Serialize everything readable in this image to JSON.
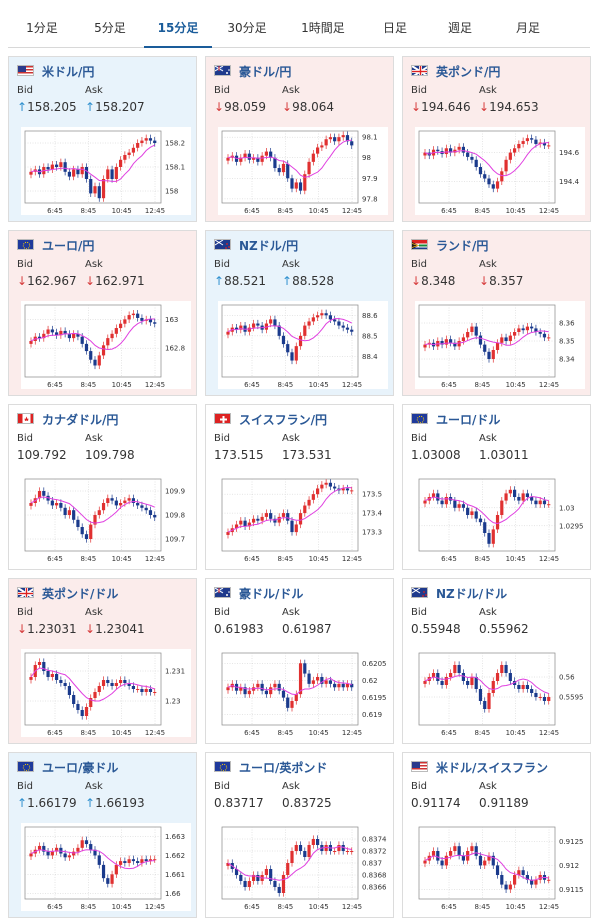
{
  "tabs": [
    {
      "label": "1分足",
      "active": false
    },
    {
      "label": "5分足",
      "active": false
    },
    {
      "label": "15分足",
      "active": true
    },
    {
      "label": "30分足",
      "active": false
    },
    {
      "label": "1時間足",
      "active": false
    },
    {
      "label": "日足",
      "active": false
    },
    {
      "label": "週足",
      "active": false
    },
    {
      "label": "月足",
      "active": false
    }
  ],
  "labels": {
    "bid": "Bid",
    "ask": "Ask"
  },
  "colors": {
    "up_bg": "#e8f3fb",
    "down_bg": "#fbeceb",
    "up_arrow": "#2e8fce",
    "down_arrow": "#d63b3b",
    "bull_candle": "#e03030",
    "bear_candle": "#1a3a8c",
    "ma_line": "#e040e0",
    "ma2_line": "#40b0e0"
  },
  "cards": [
    {
      "pair": "米ドル/円",
      "flags": "us-jp",
      "trend": "up",
      "bid": "158.205",
      "ask": "158.207",
      "bid_arrow": "↑",
      "ask_arrow": "↑",
      "chart_data": {
        "type": "candlestick",
        "x_ticks": [
          "6:45",
          "8:45",
          "10:45",
          "12:45"
        ],
        "y_ticks": [
          "158.2",
          "158.1",
          "158"
        ],
        "ylim": [
          157.95,
          158.25
        ],
        "close": [
          158.08,
          158.09,
          158.07,
          158.1,
          158.09,
          158.11,
          158.1,
          158.12,
          158.08,
          158.06,
          158.09,
          158.07,
          158.1,
          158.05,
          157.99,
          158.02,
          157.97,
          158.05,
          158.09,
          158.05,
          158.1,
          158.13,
          158.15,
          158.16,
          158.18,
          158.2,
          158.21,
          158.22,
          158.21,
          158.2
        ]
      }
    },
    {
      "pair": "豪ドル/円",
      "flags": "au-jp",
      "trend": "down",
      "bid": "98.059",
      "ask": "98.064",
      "bid_arrow": "↓",
      "ask_arrow": "↓",
      "chart_data": {
        "type": "candlestick",
        "x_ticks": [
          "6:45",
          "8:45",
          "10:45",
          "12:45"
        ],
        "y_ticks": [
          "98.1",
          "98",
          "97.9",
          "97.8"
        ],
        "ylim": [
          97.78,
          98.13
        ],
        "close": [
          98.0,
          98.01,
          97.98,
          98.0,
          98.02,
          97.99,
          98.0,
          97.98,
          98.01,
          98.03,
          98.0,
          97.95,
          97.93,
          97.97,
          97.9,
          97.85,
          97.88,
          97.84,
          97.92,
          97.98,
          98.02,
          98.05,
          98.06,
          98.09,
          98.1,
          98.08,
          98.1,
          98.11,
          98.08,
          98.06
        ]
      }
    },
    {
      "pair": "英ポンド/円",
      "flags": "gb-jp",
      "trend": "down",
      "bid": "194.646",
      "ask": "194.653",
      "bid_arrow": "↓",
      "ask_arrow": "↓",
      "chart_data": {
        "type": "candlestick",
        "x_ticks": [
          "6:45",
          "8:45",
          "10:45",
          "12:45"
        ],
        "y_ticks": [
          "194.6",
          "194.4"
        ],
        "ylim": [
          194.25,
          194.75
        ],
        "close": [
          194.6,
          194.58,
          194.62,
          194.61,
          194.59,
          194.63,
          194.6,
          194.62,
          194.64,
          194.6,
          194.57,
          194.55,
          194.5,
          194.45,
          194.42,
          194.38,
          194.35,
          194.4,
          194.47,
          194.55,
          194.6,
          194.63,
          194.66,
          194.68,
          194.7,
          194.69,
          194.66,
          194.67,
          194.65,
          194.65
        ]
      }
    },
    {
      "pair": "ユーロ/円",
      "flags": "eu-jp",
      "trend": "down",
      "bid": "162.967",
      "ask": "162.971",
      "bid_arrow": "↓",
      "ask_arrow": "↓",
      "chart_data": {
        "type": "candlestick",
        "x_ticks": [
          "6:45",
          "8:45",
          "10:45",
          "12:45"
        ],
        "y_ticks": [
          "163",
          "162.8"
        ],
        "ylim": [
          162.6,
          163.1
        ],
        "close": [
          162.85,
          162.88,
          162.87,
          162.9,
          162.93,
          162.91,
          162.89,
          162.92,
          162.9,
          162.87,
          162.9,
          162.88,
          162.83,
          162.78,
          162.72,
          162.68,
          162.75,
          162.82,
          162.87,
          162.9,
          162.94,
          162.97,
          163.0,
          163.03,
          163.04,
          163.01,
          162.99,
          163.0,
          162.98,
          162.97
        ]
      }
    },
    {
      "pair": "NZドル/円",
      "flags": "nz-jp",
      "trend": "up",
      "bid": "88.521",
      "ask": "88.528",
      "bid_arrow": "↑",
      "ask_arrow": "↑",
      "chart_data": {
        "type": "candlestick",
        "x_ticks": [
          "6:45",
          "8:45",
          "10:45",
          "12:45"
        ],
        "y_ticks": [
          "88.6",
          "88.5",
          "88.4"
        ],
        "ylim": [
          88.3,
          88.65
        ],
        "close": [
          88.52,
          88.54,
          88.53,
          88.55,
          88.52,
          88.54,
          88.56,
          88.55,
          88.53,
          88.56,
          88.58,
          88.55,
          88.5,
          88.46,
          88.42,
          88.38,
          88.45,
          88.5,
          88.55,
          88.57,
          88.59,
          88.6,
          88.61,
          88.6,
          88.58,
          88.57,
          88.55,
          88.54,
          88.53,
          88.52
        ]
      }
    },
    {
      "pair": "ランド/円",
      "flags": "za-jp",
      "trend": "down",
      "bid": "8.348",
      "ask": "8.357",
      "bid_arrow": "↓",
      "ask_arrow": "↓",
      "chart_data": {
        "type": "candlestick",
        "x_ticks": [
          "6:45",
          "8:45",
          "10:45",
          "12:45"
        ],
        "y_ticks": [
          "8.36",
          "8.35",
          "8.34"
        ],
        "ylim": [
          8.33,
          8.37
        ],
        "close": [
          8.348,
          8.349,
          8.347,
          8.35,
          8.348,
          8.351,
          8.349,
          8.347,
          8.35,
          8.352,
          8.355,
          8.358,
          8.353,
          8.348,
          8.344,
          8.34,
          8.345,
          8.349,
          8.352,
          8.35,
          8.353,
          8.355,
          8.357,
          8.356,
          8.358,
          8.357,
          8.355,
          8.354,
          8.352,
          8.352
        ]
      }
    },
    {
      "pair": "カナダドル/円",
      "flags": "ca-jp",
      "trend": "neutral",
      "bid": "109.792",
      "ask": "109.798",
      "bid_arrow": "",
      "ask_arrow": "",
      "chart_data": {
        "type": "candlestick",
        "x_ticks": [
          "6:45",
          "8:45",
          "10:45",
          "12:45"
        ],
        "y_ticks": [
          "109.9",
          "109.8",
          "109.7"
        ],
        "ylim": [
          109.65,
          109.95
        ],
        "close": [
          109.85,
          109.87,
          109.9,
          109.88,
          109.86,
          109.84,
          109.85,
          109.83,
          109.8,
          109.82,
          109.78,
          109.75,
          109.72,
          109.7,
          109.76,
          109.8,
          109.82,
          109.85,
          109.87,
          109.86,
          109.84,
          109.85,
          109.86,
          109.87,
          109.85,
          109.84,
          109.83,
          109.82,
          109.8,
          109.79
        ]
      }
    },
    {
      "pair": "スイスフラン/円",
      "flags": "ch-jp",
      "trend": "neutral",
      "bid": "173.515",
      "ask": "173.531",
      "bid_arrow": "",
      "ask_arrow": "",
      "chart_data": {
        "type": "candlestick",
        "x_ticks": [
          "6:45",
          "8:45",
          "10:45",
          "12:45"
        ],
        "y_ticks": [
          "173.5",
          "173.4",
          "173.3"
        ],
        "ylim": [
          173.2,
          173.58
        ],
        "close": [
          173.3,
          173.32,
          173.34,
          173.36,
          173.33,
          173.35,
          173.37,
          173.36,
          173.38,
          173.4,
          173.37,
          173.35,
          173.38,
          173.4,
          173.36,
          173.3,
          173.34,
          173.4,
          173.44,
          173.47,
          173.5,
          173.53,
          173.55,
          173.56,
          173.54,
          173.53,
          173.52,
          173.53,
          173.52,
          173.52
        ]
      }
    },
    {
      "pair": "ユーロ/ドル",
      "flags": "eu-us",
      "trend": "neutral",
      "bid": "1.03008",
      "ask": "1.03011",
      "bid_arrow": "",
      "ask_arrow": "",
      "chart_data": {
        "type": "candlestick",
        "x_ticks": [
          "6:45",
          "8:45",
          "10:45",
          "12:45"
        ],
        "y_ticks": [
          "1.03",
          "1.0295"
        ],
        "ylim": [
          1.0288,
          1.0308
        ],
        "close": [
          1.0302,
          1.0303,
          1.0304,
          1.0302,
          1.0301,
          1.0303,
          1.0302,
          1.03,
          1.0301,
          1.03,
          1.0298,
          1.0299,
          1.0297,
          1.0296,
          1.0293,
          1.029,
          1.0294,
          1.0298,
          1.0302,
          1.0304,
          1.0305,
          1.0303,
          1.0302,
          1.0304,
          1.0303,
          1.0302,
          1.0301,
          1.0302,
          1.0301,
          1.0301
        ]
      }
    },
    {
      "pair": "英ポンド/ドル",
      "flags": "gb-us",
      "trend": "down",
      "bid": "1.23031",
      "ask": "1.23041",
      "bid_arrow": "↓",
      "ask_arrow": "↓",
      "chart_data": {
        "type": "candlestick",
        "x_ticks": [
          "6:45",
          "8:45",
          "10:45",
          "12:45"
        ],
        "y_ticks": [
          "1.231",
          "1.23"
        ],
        "ylim": [
          1.2292,
          1.2316
        ],
        "close": [
          1.2308,
          1.2312,
          1.2313,
          1.231,
          1.2308,
          1.2309,
          1.2307,
          1.2306,
          1.2305,
          1.2302,
          1.2299,
          1.2297,
          1.2295,
          1.2298,
          1.2301,
          1.2303,
          1.2305,
          1.2307,
          1.2306,
          1.2305,
          1.2306,
          1.2307,
          1.2306,
          1.2305,
          1.2304,
          1.2304,
          1.2303,
          1.2304,
          1.2303,
          1.2303
        ]
      }
    },
    {
      "pair": "豪ドル/ドル",
      "flags": "au-us",
      "trend": "neutral",
      "bid": "0.61983",
      "ask": "0.61987",
      "bid_arrow": "",
      "ask_arrow": "",
      "chart_data": {
        "type": "candlestick",
        "x_ticks": [
          "6:45",
          "8:45",
          "10:45",
          "12:45"
        ],
        "y_ticks": [
          "0.6205",
          "0.62",
          "0.6195",
          "0.619"
        ],
        "ylim": [
          0.6187,
          0.6208
        ],
        "close": [
          0.6198,
          0.6199,
          0.6197,
          0.6198,
          0.6196,
          0.6197,
          0.6198,
          0.6199,
          0.6197,
          0.6196,
          0.6198,
          0.6199,
          0.6197,
          0.6195,
          0.6192,
          0.6194,
          0.6196,
          0.6205,
          0.6202,
          0.6199,
          0.62,
          0.6201,
          0.6199,
          0.62,
          0.6199,
          0.6198,
          0.6199,
          0.6198,
          0.6199,
          0.6198
        ]
      }
    },
    {
      "pair": "NZドル/ドル",
      "flags": "nz-us",
      "trend": "neutral",
      "bid": "0.55948",
      "ask": "0.55962",
      "bid_arrow": "",
      "ask_arrow": "",
      "chart_data": {
        "type": "candlestick",
        "x_ticks": [
          "6:45",
          "8:45",
          "10:45",
          "12:45"
        ],
        "y_ticks": [
          "0.56",
          "0.5595"
        ],
        "ylim": [
          0.5588,
          0.5606
        ],
        "close": [
          0.5599,
          0.56,
          0.5601,
          0.5599,
          0.5598,
          0.56,
          0.5601,
          0.5603,
          0.5601,
          0.5599,
          0.5598,
          0.56,
          0.5597,
          0.5594,
          0.5592,
          0.5596,
          0.5599,
          0.5601,
          0.5603,
          0.5601,
          0.5599,
          0.5598,
          0.5597,
          0.5598,
          0.5597,
          0.5596,
          0.5595,
          0.5595,
          0.5594,
          0.5595
        ]
      }
    },
    {
      "pair": "ユーロ/豪ドル",
      "flags": "eu-au",
      "trend": "up",
      "bid": "1.66179",
      "ask": "1.66193",
      "bid_arrow": "↑",
      "ask_arrow": "↑",
      "chart_data": {
        "type": "candlestick",
        "x_ticks": [
          "6:45",
          "8:45",
          "10:45",
          "12:45"
        ],
        "y_ticks": [
          "1.663",
          "1.662",
          "1.661",
          "1.66"
        ],
        "ylim": [
          1.6597,
          1.6635
        ],
        "close": [
          1.6621,
          1.6623,
          1.6625,
          1.6622,
          1.662,
          1.6622,
          1.6624,
          1.6621,
          1.6619,
          1.662,
          1.6622,
          1.6624,
          1.6628,
          1.6626,
          1.6623,
          1.662,
          1.6615,
          1.6608,
          1.6605,
          1.661,
          1.6615,
          1.6617,
          1.6616,
          1.6618,
          1.6617,
          1.6616,
          1.6618,
          1.6617,
          1.6618,
          1.6618
        ]
      }
    },
    {
      "pair": "ユーロ/英ポンド",
      "flags": "eu-gb",
      "trend": "neutral",
      "bid": "0.83717",
      "ask": "0.83725",
      "bid_arrow": "",
      "ask_arrow": "",
      "chart_data": {
        "type": "candlestick",
        "x_ticks": [
          "6:45",
          "8:45",
          "10:45",
          "12:45"
        ],
        "y_ticks": [
          "0.8374",
          "0.8372",
          "0.837",
          "0.8368",
          "0.8366"
        ],
        "ylim": [
          0.8364,
          0.8376
        ],
        "close": [
          0.837,
          0.8369,
          0.8368,
          0.8367,
          0.8366,
          0.8367,
          0.8368,
          0.8367,
          0.8368,
          0.8369,
          0.8367,
          0.8366,
          0.8365,
          0.8368,
          0.837,
          0.8372,
          0.8373,
          0.8372,
          0.8371,
          0.8373,
          0.8374,
          0.8373,
          0.8372,
          0.8373,
          0.8372,
          0.8372,
          0.8373,
          0.8372,
          0.8372,
          0.8372
        ]
      }
    },
    {
      "pair": "米ドル/スイスフラン",
      "flags": "us-ch",
      "trend": "neutral",
      "bid": "0.91174",
      "ask": "0.91189",
      "bid_arrow": "",
      "ask_arrow": "",
      "chart_data": {
        "type": "candlestick",
        "x_ticks": [
          "6:45",
          "8:45",
          "10:45",
          "12:45"
        ],
        "y_ticks": [
          "0.9125",
          "0.912",
          "0.9115"
        ],
        "ylim": [
          0.9113,
          0.9128
        ],
        "close": [
          0.9121,
          0.9122,
          0.9123,
          0.9121,
          0.912,
          0.9122,
          0.9123,
          0.9124,
          0.9122,
          0.9121,
          0.9123,
          0.9124,
          0.9122,
          0.912,
          0.9121,
          0.9122,
          0.912,
          0.9118,
          0.9116,
          0.9115,
          0.9116,
          0.9118,
          0.9119,
          0.9118,
          0.9117,
          0.9116,
          0.9117,
          0.9118,
          0.9117,
          0.9117
        ]
      }
    }
  ]
}
